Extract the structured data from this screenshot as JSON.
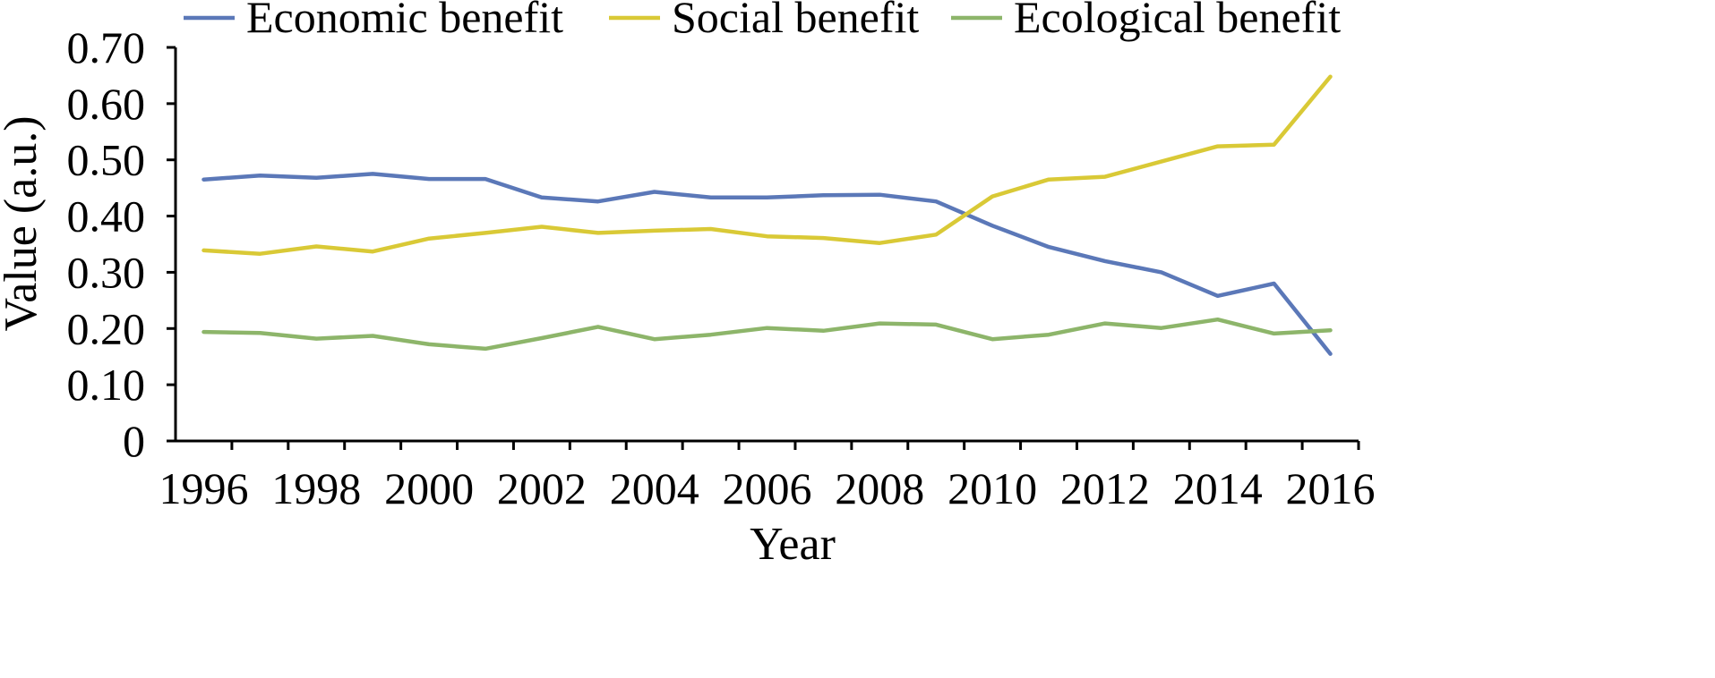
{
  "chart_data": {
    "type": "line",
    "xlabel": "Year",
    "ylabel": "Value (a.u.)",
    "x": [
      1996,
      1997,
      1998,
      1999,
      2000,
      2001,
      2002,
      2003,
      2004,
      2005,
      2006,
      2007,
      2008,
      2009,
      2010,
      2011,
      2012,
      2013,
      2014,
      2015,
      2016
    ],
    "x_tick_labels": [
      "1996",
      "1998",
      "2000",
      "2002",
      "2004",
      "2006",
      "2008",
      "2010",
      "2012",
      "2014",
      "2016"
    ],
    "y_tick_labels": [
      "0",
      "0.10",
      "0.20",
      "0.30",
      "0.40",
      "0.50",
      "0.60",
      "0.70"
    ],
    "ylim": [
      0,
      0.7
    ],
    "grid": false,
    "legend_position": "top",
    "series": [
      {
        "name": "Economic benefit",
        "color": "#5b78b8",
        "values": [
          0.465,
          0.472,
          0.468,
          0.475,
          0.466,
          0.466,
          0.433,
          0.426,
          0.443,
          0.433,
          0.433,
          0.437,
          0.438,
          0.426,
          0.383,
          0.345,
          0.32,
          0.3,
          0.258,
          0.28,
          0.155
        ]
      },
      {
        "name": "Social benefit",
        "color": "#d9c936",
        "values": [
          0.339,
          0.333,
          0.346,
          0.337,
          0.36,
          0.37,
          0.381,
          0.37,
          0.374,
          0.377,
          0.364,
          0.361,
          0.352,
          0.367,
          0.435,
          0.465,
          0.47,
          0.497,
          0.524,
          0.527,
          0.648
        ]
      },
      {
        "name": "Ecological benefit",
        "color": "#8db56a",
        "values": [
          0.194,
          0.192,
          0.182,
          0.187,
          0.172,
          0.164,
          0.183,
          0.203,
          0.181,
          0.189,
          0.201,
          0.196,
          0.209,
          0.207,
          0.181,
          0.189,
          0.209,
          0.201,
          0.216,
          0.191,
          0.197
        ]
      }
    ]
  }
}
